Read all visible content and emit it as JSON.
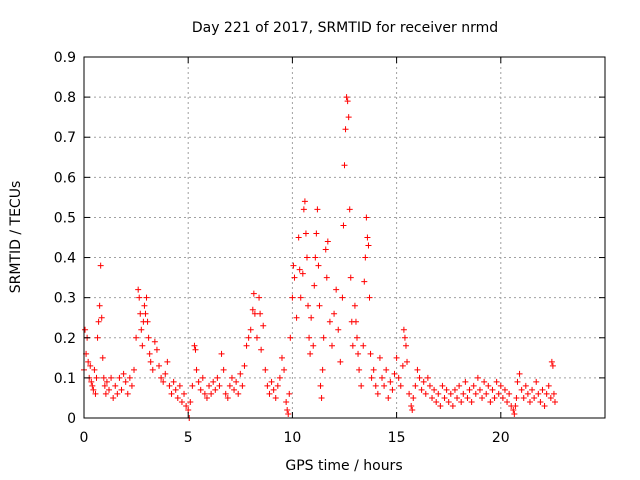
{
  "chart_data": {
    "type": "scatter",
    "title": "Day 221 of 2017, SRMTID for receiver nrmd",
    "xlabel": "GPS time / hours",
    "ylabel": "SRMTID / TECUs",
    "xlim": [
      0,
      25
    ],
    "ylim": [
      0,
      0.9
    ],
    "xticks": [
      0,
      5,
      10,
      15,
      20
    ],
    "xtick_labels": [
      "0",
      "5",
      "10",
      "15",
      "20"
    ],
    "yticks": [
      0,
      0.1,
      0.2,
      0.3,
      0.4,
      0.5,
      0.6,
      0.7,
      0.8,
      0.9
    ],
    "ytick_labels": [
      "0",
      "0.1",
      "0.2",
      "0.3",
      "0.4",
      "0.5",
      "0.6",
      "0.7",
      "0.8",
      "0.9"
    ],
    "grid": true,
    "marker": "+",
    "color": "#ff0000",
    "series": [
      {
        "name": "SRMTID",
        "points": [
          [
            0.0,
            0.12
          ],
          [
            0.05,
            0.22
          ],
          [
            0.1,
            0.16
          ],
          [
            0.15,
            0.2
          ],
          [
            0.2,
            0.14
          ],
          [
            0.25,
            0.1
          ],
          [
            0.3,
            0.13
          ],
          [
            0.35,
            0.09
          ],
          [
            0.4,
            0.08
          ],
          [
            0.45,
            0.07
          ],
          [
            0.5,
            0.12
          ],
          [
            0.55,
            0.06
          ],
          [
            0.6,
            0.1
          ],
          [
            0.65,
            0.2
          ],
          [
            0.7,
            0.24
          ],
          [
            0.75,
            0.28
          ],
          [
            0.8,
            0.38
          ],
          [
            0.85,
            0.25
          ],
          [
            0.9,
            0.15
          ],
          [
            0.95,
            0.1
          ],
          [
            1.0,
            0.08
          ],
          [
            1.05,
            0.06
          ],
          [
            1.1,
            0.09
          ],
          [
            1.2,
            0.07
          ],
          [
            1.3,
            0.1
          ],
          [
            1.4,
            0.05
          ],
          [
            1.5,
            0.08
          ],
          [
            1.6,
            0.06
          ],
          [
            1.7,
            0.1
          ],
          [
            1.8,
            0.07
          ],
          [
            1.9,
            0.11
          ],
          [
            2.0,
            0.09
          ],
          [
            2.1,
            0.06
          ],
          [
            2.2,
            0.1
          ],
          [
            2.3,
            0.08
          ],
          [
            2.4,
            0.12
          ],
          [
            2.5,
            0.2
          ],
          [
            2.6,
            0.32
          ],
          [
            2.65,
            0.3
          ],
          [
            2.7,
            0.26
          ],
          [
            2.75,
            0.22
          ],
          [
            2.8,
            0.18
          ],
          [
            2.85,
            0.24
          ],
          [
            2.9,
            0.28
          ],
          [
            2.95,
            0.26
          ],
          [
            3.0,
            0.3
          ],
          [
            3.05,
            0.24
          ],
          [
            3.1,
            0.2
          ],
          [
            3.15,
            0.16
          ],
          [
            3.2,
            0.14
          ],
          [
            3.3,
            0.12
          ],
          [
            3.4,
            0.19
          ],
          [
            3.5,
            0.17
          ],
          [
            3.6,
            0.13
          ],
          [
            3.7,
            0.1
          ],
          [
            3.8,
            0.09
          ],
          [
            3.9,
            0.11
          ],
          [
            4.0,
            0.14
          ],
          [
            4.1,
            0.08
          ],
          [
            4.2,
            0.06
          ],
          [
            4.3,
            0.09
          ],
          [
            4.4,
            0.07
          ],
          [
            4.5,
            0.05
          ],
          [
            4.6,
            0.08
          ],
          [
            4.7,
            0.04
          ],
          [
            4.8,
            0.06
          ],
          [
            4.9,
            0.03
          ],
          [
            5.0,
            0.02
          ],
          [
            5.05,
            0.0
          ],
          [
            5.1,
            0.04
          ],
          [
            5.2,
            0.08
          ],
          [
            5.3,
            0.18
          ],
          [
            5.35,
            0.17
          ],
          [
            5.4,
            0.12
          ],
          [
            5.5,
            0.09
          ],
          [
            5.6,
            0.07
          ],
          [
            5.7,
            0.1
          ],
          [
            5.8,
            0.06
          ],
          [
            5.9,
            0.05
          ],
          [
            6.0,
            0.08
          ],
          [
            6.1,
            0.06
          ],
          [
            6.2,
            0.09
          ],
          [
            6.3,
            0.07
          ],
          [
            6.4,
            0.1
          ],
          [
            6.5,
            0.08
          ],
          [
            6.6,
            0.16
          ],
          [
            6.7,
            0.12
          ],
          [
            6.8,
            0.06
          ],
          [
            6.9,
            0.05
          ],
          [
            7.0,
            0.08
          ],
          [
            7.1,
            0.1
          ],
          [
            7.2,
            0.07
          ],
          [
            7.3,
            0.09
          ],
          [
            7.4,
            0.06
          ],
          [
            7.5,
            0.11
          ],
          [
            7.6,
            0.08
          ],
          [
            7.7,
            0.13
          ],
          [
            7.8,
            0.18
          ],
          [
            7.9,
            0.2
          ],
          [
            8.0,
            0.22
          ],
          [
            8.1,
            0.27
          ],
          [
            8.15,
            0.31
          ],
          [
            8.2,
            0.26
          ],
          [
            8.3,
            0.2
          ],
          [
            8.4,
            0.3
          ],
          [
            8.45,
            0.26
          ],
          [
            8.5,
            0.17
          ],
          [
            8.6,
            0.23
          ],
          [
            8.7,
            0.12
          ],
          [
            8.8,
            0.08
          ],
          [
            8.9,
            0.06
          ],
          [
            9.0,
            0.09
          ],
          [
            9.1,
            0.07
          ],
          [
            9.2,
            0.05
          ],
          [
            9.3,
            0.08
          ],
          [
            9.4,
            0.1
          ],
          [
            9.5,
            0.15
          ],
          [
            9.6,
            0.12
          ],
          [
            9.7,
            0.04
          ],
          [
            9.75,
            0.02
          ],
          [
            9.8,
            0.01
          ],
          [
            9.85,
            0.06
          ],
          [
            9.9,
            0.2
          ],
          [
            10.0,
            0.3
          ],
          [
            10.05,
            0.38
          ],
          [
            10.1,
            0.35
          ],
          [
            10.2,
            0.25
          ],
          [
            10.3,
            0.45
          ],
          [
            10.35,
            0.37
          ],
          [
            10.4,
            0.3
          ],
          [
            10.5,
            0.36
          ],
          [
            10.55,
            0.52
          ],
          [
            10.6,
            0.54
          ],
          [
            10.65,
            0.46
          ],
          [
            10.7,
            0.4
          ],
          [
            10.75,
            0.28
          ],
          [
            10.8,
            0.2
          ],
          [
            10.85,
            0.16
          ],
          [
            10.9,
            0.25
          ],
          [
            11.0,
            0.18
          ],
          [
            11.05,
            0.33
          ],
          [
            11.1,
            0.4
          ],
          [
            11.15,
            0.46
          ],
          [
            11.2,
            0.52
          ],
          [
            11.25,
            0.38
          ],
          [
            11.3,
            0.28
          ],
          [
            11.35,
            0.08
          ],
          [
            11.4,
            0.05
          ],
          [
            11.45,
            0.12
          ],
          [
            11.5,
            0.2
          ],
          [
            11.6,
            0.42
          ],
          [
            11.65,
            0.35
          ],
          [
            11.7,
            0.44
          ],
          [
            11.8,
            0.24
          ],
          [
            11.9,
            0.18
          ],
          [
            12.0,
            0.26
          ],
          [
            12.1,
            0.32
          ],
          [
            12.2,
            0.22
          ],
          [
            12.3,
            0.14
          ],
          [
            12.4,
            0.3
          ],
          [
            12.45,
            0.48
          ],
          [
            12.5,
            0.63
          ],
          [
            12.55,
            0.72
          ],
          [
            12.6,
            0.8
          ],
          [
            12.65,
            0.79
          ],
          [
            12.7,
            0.75
          ],
          [
            12.75,
            0.52
          ],
          [
            12.8,
            0.35
          ],
          [
            12.85,
            0.24
          ],
          [
            12.9,
            0.18
          ],
          [
            13.0,
            0.28
          ],
          [
            13.05,
            0.24
          ],
          [
            13.1,
            0.2
          ],
          [
            13.15,
            0.16
          ],
          [
            13.2,
            0.12
          ],
          [
            13.3,
            0.08
          ],
          [
            13.4,
            0.18
          ],
          [
            13.45,
            0.34
          ],
          [
            13.5,
            0.4
          ],
          [
            13.55,
            0.5
          ],
          [
            13.6,
            0.45
          ],
          [
            13.65,
            0.43
          ],
          [
            13.7,
            0.3
          ],
          [
            13.75,
            0.16
          ],
          [
            13.8,
            0.1
          ],
          [
            13.9,
            0.12
          ],
          [
            14.0,
            0.08
          ],
          [
            14.1,
            0.06
          ],
          [
            14.2,
            0.15
          ],
          [
            14.3,
            0.1
          ],
          [
            14.4,
            0.08
          ],
          [
            14.5,
            0.12
          ],
          [
            14.6,
            0.05
          ],
          [
            14.7,
            0.09
          ],
          [
            14.8,
            0.07
          ],
          [
            14.9,
            0.11
          ],
          [
            15.0,
            0.15
          ],
          [
            15.1,
            0.1
          ],
          [
            15.2,
            0.08
          ],
          [
            15.3,
            0.13
          ],
          [
            15.35,
            0.22
          ],
          [
            15.4,
            0.2
          ],
          [
            15.45,
            0.18
          ],
          [
            15.5,
            0.14
          ],
          [
            15.6,
            0.06
          ],
          [
            15.7,
            0.03
          ],
          [
            15.75,
            0.02
          ],
          [
            15.8,
            0.05
          ],
          [
            15.9,
            0.08
          ],
          [
            16.0,
            0.12
          ],
          [
            16.1,
            0.1
          ],
          [
            16.2,
            0.07
          ],
          [
            16.3,
            0.09
          ],
          [
            16.4,
            0.06
          ],
          [
            16.5,
            0.1
          ],
          [
            16.6,
            0.08
          ],
          [
            16.7,
            0.05
          ],
          [
            16.8,
            0.07
          ],
          [
            16.9,
            0.04
          ],
          [
            17.0,
            0.06
          ],
          [
            17.1,
            0.03
          ],
          [
            17.2,
            0.08
          ],
          [
            17.3,
            0.05
          ],
          [
            17.4,
            0.07
          ],
          [
            17.5,
            0.04
          ],
          [
            17.6,
            0.06
          ],
          [
            17.7,
            0.03
          ],
          [
            17.8,
            0.07
          ],
          [
            17.9,
            0.05
          ],
          [
            18.0,
            0.08
          ],
          [
            18.1,
            0.04
          ],
          [
            18.2,
            0.06
          ],
          [
            18.3,
            0.09
          ],
          [
            18.4,
            0.05
          ],
          [
            18.5,
            0.07
          ],
          [
            18.6,
            0.04
          ],
          [
            18.7,
            0.08
          ],
          [
            18.8,
            0.06
          ],
          [
            18.9,
            0.1
          ],
          [
            19.0,
            0.07
          ],
          [
            19.1,
            0.05
          ],
          [
            19.2,
            0.09
          ],
          [
            19.3,
            0.06
          ],
          [
            19.4,
            0.08
          ],
          [
            19.5,
            0.04
          ],
          [
            19.6,
            0.07
          ],
          [
            19.7,
            0.05
          ],
          [
            19.8,
            0.09
          ],
          [
            19.9,
            0.06
          ],
          [
            20.0,
            0.08
          ],
          [
            20.1,
            0.05
          ],
          [
            20.2,
            0.07
          ],
          [
            20.3,
            0.04
          ],
          [
            20.4,
            0.06
          ],
          [
            20.5,
            0.03
          ],
          [
            20.6,
            0.02
          ],
          [
            20.65,
            0.01
          ],
          [
            20.7,
            0.03
          ],
          [
            20.75,
            0.05
          ],
          [
            20.8,
            0.09
          ],
          [
            20.9,
            0.11
          ],
          [
            21.0,
            0.07
          ],
          [
            21.1,
            0.05
          ],
          [
            21.2,
            0.08
          ],
          [
            21.3,
            0.06
          ],
          [
            21.4,
            0.04
          ],
          [
            21.5,
            0.07
          ],
          [
            21.6,
            0.05
          ],
          [
            21.7,
            0.09
          ],
          [
            21.8,
            0.06
          ],
          [
            21.9,
            0.04
          ],
          [
            22.0,
            0.07
          ],
          [
            22.1,
            0.03
          ],
          [
            22.2,
            0.06
          ],
          [
            22.3,
            0.08
          ],
          [
            22.4,
            0.05
          ],
          [
            22.45,
            0.14
          ],
          [
            22.5,
            0.13
          ],
          [
            22.55,
            0.06
          ],
          [
            22.6,
            0.04
          ]
        ]
      }
    ]
  }
}
